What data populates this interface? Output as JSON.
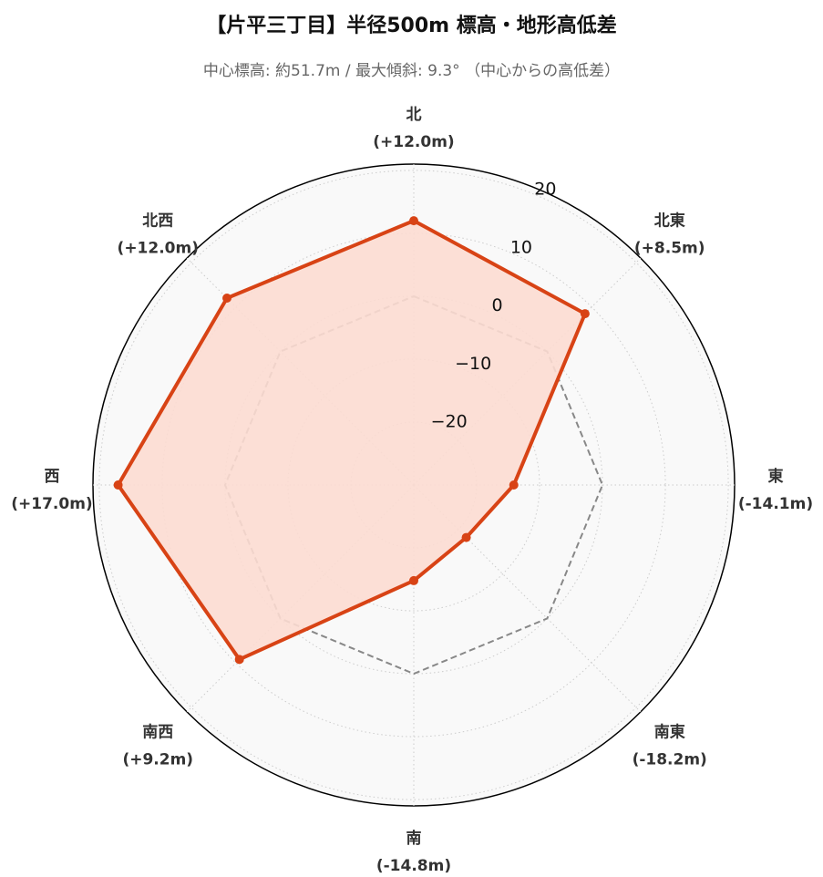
{
  "title": "【片平三丁目】半径500m 標高・地形高低差",
  "subtitle": "中心標高: 約51.7m / 最大傾斜: 9.3°  （中心からの高低差）",
  "chart_data": {
    "type": "radar",
    "title": "【片平三丁目】半径500m 標高・地形高低差",
    "subtitle": "中心標高: 約51.7m / 最大傾斜: 9.3°  （中心からの高低差）",
    "categories": [
      "北",
      "北東",
      "東",
      "南東",
      "南",
      "南西",
      "西",
      "北西"
    ],
    "category_labels": [
      "(+12.0m)",
      "(+8.5m)",
      "(-14.1m)",
      "(-18.2m)",
      "(-14.8m)",
      "(+9.2m)",
      "(+17.0m)",
      "(+12.0m)"
    ],
    "series": [
      {
        "values": [
          12.0,
          8.5,
          -14.1,
          -18.2,
          -14.8,
          9.2,
          17.0,
          12.0
        ]
      }
    ],
    "reference_level": 0,
    "r_range": [
      -30,
      21
    ],
    "r_ticks": [
      -20,
      -10,
      0,
      10,
      20
    ],
    "r_tick_labels": [
      "−20",
      "−10",
      "0",
      "10",
      "20"
    ],
    "grid": true,
    "line_color": "#d84315",
    "fill_color": "#fcdcd2",
    "reference_color": "#888888"
  }
}
